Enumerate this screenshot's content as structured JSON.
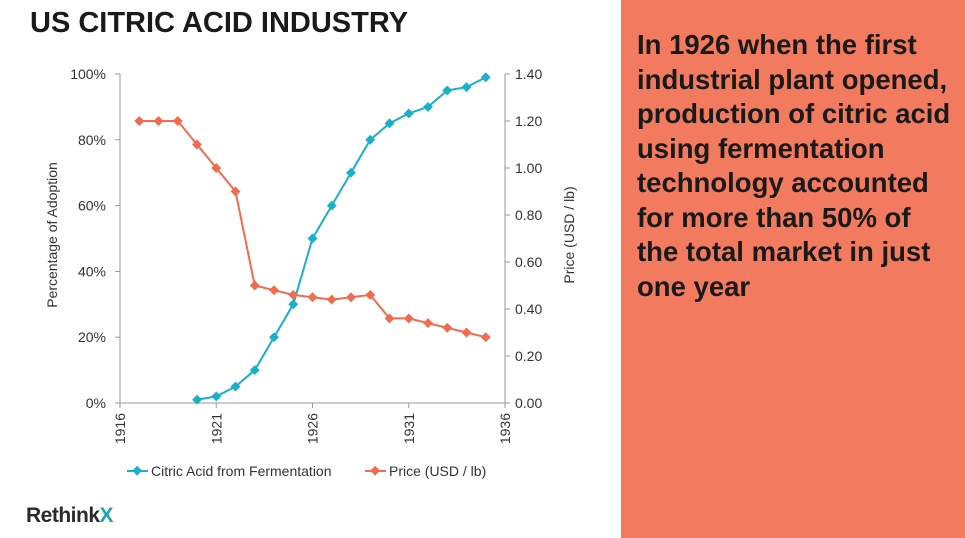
{
  "slide": {
    "title": "US CITRIC ACID INDUSTRY",
    "callout": "In 1926 when the first industrial plant opened, production of citric acid using fermentation technology accounted for more than 50% of the total market in just one year",
    "logo_main": "Rethink",
    "logo_accent": "X"
  },
  "colors": {
    "series_fermentation": "#1ab0c9",
    "series_price": "#f26b4f",
    "panel": "#f27a5f"
  },
  "chart_data": {
    "type": "line",
    "xlabel": "",
    "ylabel": "Percentage of Adoption",
    "y2label": "Price (USD / lb)",
    "xlim": [
      1916,
      1936
    ],
    "ylim": [
      0,
      100
    ],
    "y2lim": [
      0,
      1.4
    ],
    "xticks": [
      "1916",
      "1921",
      "1926",
      "1931",
      "1936"
    ],
    "yticks": [
      "0%",
      "20%",
      "40%",
      "60%",
      "80%",
      "100%"
    ],
    "y2ticks": [
      "0.00",
      "0.20",
      "0.40",
      "0.60",
      "0.80",
      "1.00",
      "1.20",
      "1.40"
    ],
    "grid": false,
    "legend_position": "bottom",
    "series": [
      {
        "name": "Citric Acid from Fermentation",
        "axis": "left",
        "x": [
          1920,
          1921,
          1922,
          1923,
          1924,
          1925,
          1926,
          1927,
          1928,
          1929,
          1930,
          1931,
          1932,
          1933,
          1934,
          1935
        ],
        "y": [
          1,
          2,
          5,
          10,
          20,
          30,
          50,
          60,
          70,
          80,
          85,
          88,
          90,
          95,
          96,
          99
        ]
      },
      {
        "name": "Price (USD / lb)",
        "axis": "right",
        "x": [
          1917,
          1918,
          1919,
          1920,
          1921,
          1922,
          1923,
          1924,
          1925,
          1926,
          1927,
          1928,
          1929,
          1930,
          1931,
          1932,
          1933,
          1934,
          1935
        ],
        "y": [
          1.2,
          1.2,
          1.2,
          1.1,
          1.0,
          0.9,
          0.5,
          0.48,
          0.46,
          0.45,
          0.44,
          0.45,
          0.46,
          0.36,
          0.36,
          0.34,
          0.32,
          0.3,
          0.28
        ]
      }
    ]
  }
}
